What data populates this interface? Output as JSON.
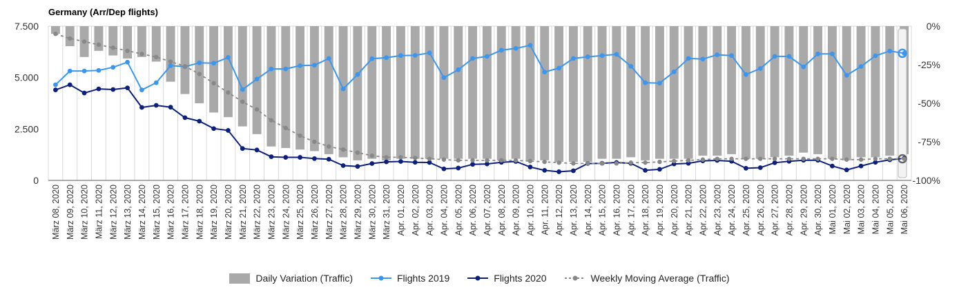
{
  "chart_data": {
    "type": "bar-line",
    "title": "Germany (Arr/Dep flights)",
    "categories": [
      "März 08, 2020",
      "März 09, 2020",
      "März 10, 2020",
      "März 11, 2020",
      "März 12, 2020",
      "März 13, 2020",
      "März 14, 2020",
      "März 15, 2020",
      "März 16, 2020",
      "März 17, 2020",
      "März 18, 2020",
      "März 19, 2020",
      "März 20, 2020",
      "März 21, 2020",
      "März 22, 2020",
      "März 23, 2020",
      "März 24, 2020",
      "März 25, 2020",
      "März 26, 2020",
      "März 27, 2020",
      "März 28, 2020",
      "März 29, 2020",
      "März 30, 2020",
      "März 31, 2020",
      "Apr. 01, 2020",
      "Apr. 02, 2020",
      "Apr. 03, 2020",
      "Apr. 04, 2020",
      "Apr. 05, 2020",
      "Apr. 06, 2020",
      "Apr. 07, 2020",
      "Apr. 08, 2020",
      "Apr. 09, 2020",
      "Apr. 10, 2020",
      "Apr. 11, 2020",
      "Apr. 12, 2020",
      "Apr. 13, 2020",
      "Apr. 14, 2020",
      "Apr. 15, 2020",
      "Apr. 16, 2020",
      "Apr. 17, 2020",
      "Apr. 18, 2020",
      "Apr. 19, 2020",
      "Apr. 20, 2020",
      "Apr. 21, 2020",
      "Apr. 22, 2020",
      "Apr. 23, 2020",
      "Apr. 24, 2020",
      "Apr. 25, 2020",
      "Apr. 26, 2020",
      "Apr. 27, 2020",
      "Apr. 28, 2020",
      "Apr. 29, 2020",
      "Apr. 30, 2020",
      "Mai 01, 2020",
      "Mai 02, 2020",
      "Mai 03, 2020",
      "Mai 04, 2020",
      "Mai 05, 2020",
      "Mai 06, 2020"
    ],
    "left_axis": {
      "range": [
        0,
        7500
      ],
      "ticks": [
        0,
        2500,
        5000,
        7500
      ],
      "tick_labels": [
        "0",
        "2.500",
        "5.000",
        "7.500"
      ]
    },
    "right_axis": {
      "range": [
        -100,
        0
      ],
      "ticks": [
        0,
        -25,
        -50,
        -75,
        -100
      ],
      "tick_labels": [
        "0%",
        "-25%",
        "-50%",
        "-75%",
        "-100%"
      ]
    },
    "series": [
      {
        "name": "Daily Variation (Traffic)",
        "type": "bar",
        "axis": "right",
        "color": "#a9a9a9",
        "values": [
          -5,
          -13,
          -20,
          -16,
          -19,
          -21,
          -20,
          -23,
          -36,
          -44,
          -50,
          -56,
          -59,
          -65,
          -70,
          -78,
          -79,
          -80,
          -81,
          -83,
          -85,
          -87,
          -86,
          -87,
          -86,
          -86,
          -86,
          -86,
          -86,
          -86,
          -86,
          -87,
          -86,
          -87,
          -87,
          -88,
          -88,
          -88,
          -86,
          -86,
          -85,
          -87,
          -86,
          -86,
          -86,
          -84,
          -84,
          -83,
          -86,
          -86,
          -85,
          -84,
          -82,
          -83,
          -86,
          -87,
          -85,
          -85,
          -84,
          -83
        ]
      },
      {
        "name": "Flights 2019",
        "type": "line",
        "axis": "left",
        "color": "#3b96f0",
        "values": [
          4650,
          5320,
          5320,
          5350,
          5500,
          5750,
          4400,
          4750,
          5580,
          5530,
          5720,
          5700,
          5980,
          4420,
          4930,
          5420,
          5420,
          5580,
          5600,
          5930,
          4450,
          5150,
          5920,
          5970,
          6070,
          6080,
          6200,
          5000,
          5380,
          5930,
          6030,
          6330,
          6420,
          6570,
          5270,
          5460,
          5930,
          6010,
          6070,
          6130,
          5550,
          4750,
          4730,
          5280,
          5930,
          5900,
          6110,
          6070,
          5150,
          5440,
          6030,
          6030,
          5520,
          6150,
          6150,
          5110,
          5540,
          6060,
          6290,
          6180
        ]
      },
      {
        "name": "Flights 2020",
        "type": "line",
        "axis": "left",
        "color": "#0d1f7e",
        "values": [
          4400,
          4650,
          4250,
          4450,
          4420,
          4500,
          3550,
          3650,
          3560,
          3050,
          2880,
          2520,
          2430,
          1550,
          1480,
          1150,
          1120,
          1120,
          1060,
          1030,
          720,
          680,
          820,
          900,
          920,
          880,
          870,
          560,
          600,
          780,
          800,
          880,
          920,
          650,
          490,
          420,
          470,
          820,
          830,
          870,
          830,
          490,
          540,
          800,
          830,
          950,
          970,
          930,
          590,
          620,
          860,
          930,
          980,
          980,
          700,
          510,
          700,
          880,
          1000,
          1070
        ]
      },
      {
        "name": "Weekly Moving Average (Traffic)",
        "type": "line",
        "axis": "right",
        "color": "#888888",
        "dashed": true,
        "values": [
          -5,
          -8,
          -10,
          -12,
          -14,
          -16,
          -18,
          -20,
          -23,
          -26,
          -31,
          -37,
          -43,
          -49,
          -54,
          -61,
          -66,
          -71,
          -75,
          -78,
          -80,
          -82,
          -84,
          -85,
          -85,
          -85.5,
          -86,
          -86.5,
          -87,
          -87,
          -87,
          -87,
          -87,
          -87.5,
          -88,
          -88.5,
          -89,
          -89,
          -89,
          -89,
          -88.5,
          -88.5,
          -88,
          -87.5,
          -87,
          -86.5,
          -86,
          -86,
          -86,
          -86,
          -86,
          -86,
          -86,
          -86,
          -86,
          -86.5,
          -86.5,
          -86,
          -86,
          -86
        ]
      }
    ],
    "legend": [
      "Daily Variation (Traffic)",
      "Flights 2019",
      "Flights 2020",
      "Weekly Moving Average (Traffic)"
    ],
    "legend_position": "bottom",
    "grid": "vertical"
  }
}
